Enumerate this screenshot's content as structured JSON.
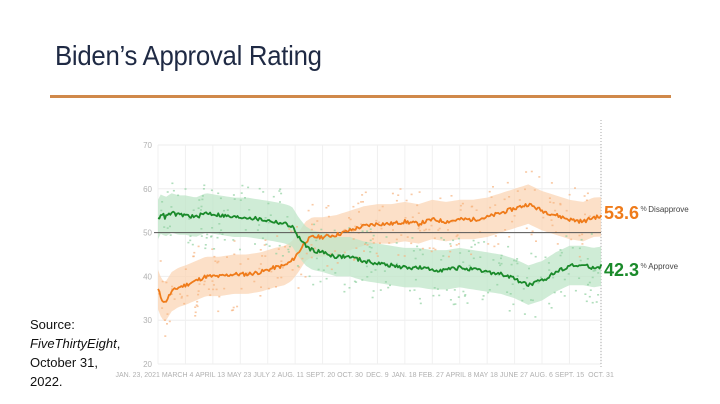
{
  "slide": {
    "title": "Biden’s Approval Rating",
    "source_prefix": "Source:",
    "source_name": "FiveThirtyEight",
    "source_date_line1": "October 31,",
    "source_date_line2": "2022."
  },
  "colors": {
    "approve": "#1a8a2a",
    "disapprove": "#ef7b1a",
    "approve_band": "#bfe6c8",
    "disapprove_band": "#fbd5b5",
    "rule": "#d0894a",
    "reference_line": "#555555"
  },
  "chart_data": {
    "type": "line",
    "title": "Biden’s Approval Rating",
    "xlabel": "",
    "ylabel": "",
    "ylim": [
      20,
      70
    ],
    "yticks": [
      20,
      30,
      40,
      50,
      60,
      70
    ],
    "reference_line": 50,
    "grid": true,
    "x_tick_labels": [
      "JAN. 23, 2021",
      "MARCH 4",
      "APRIL 13",
      "MAY 23",
      "JULY 2",
      "AUG. 11",
      "SEPT. 20",
      "OCT. 30",
      "DEC. 9",
      "JAN. 18",
      "FEB. 27",
      "APRIL 8",
      "MAY 18",
      "JUNE 27",
      "AUG. 6",
      "SEPT. 15",
      "OCT. 31"
    ],
    "x_tick_days": [
      0,
      40,
      80,
      120,
      160,
      200,
      240,
      280,
      320,
      360,
      400,
      440,
      480,
      520,
      560,
      600,
      646
    ],
    "x_unit": "days since Jan. 23, 2021",
    "xlim": [
      0,
      646
    ],
    "series": [
      {
        "name": "Disapprove",
        "end_value": "53.6",
        "end_label": "Disapprove",
        "x": [
          0,
          5,
          10,
          20,
          30,
          40,
          55,
          70,
          90,
          110,
          130,
          150,
          170,
          185,
          195,
          205,
          215,
          225,
          240,
          260,
          280,
          300,
          320,
          340,
          360,
          380,
          400,
          420,
          440,
          460,
          480,
          500,
          520,
          540,
          560,
          580,
          600,
          620,
          635,
          646
        ],
        "values": [
          37,
          35,
          34,
          36.5,
          37.5,
          38,
          39,
          40,
          40,
          40.5,
          40.5,
          41,
          42,
          42.5,
          43.5,
          45.5,
          48,
          49,
          49,
          49.5,
          50.5,
          51.5,
          52,
          52,
          52.5,
          52,
          53,
          52.5,
          53,
          53,
          53.5,
          54.5,
          55.5,
          56.5,
          55,
          54,
          53,
          52.5,
          53.5,
          53.6
        ]
      },
      {
        "name": "Approve",
        "end_value": "42.3",
        "end_label": "Approve",
        "x": [
          0,
          5,
          10,
          20,
          30,
          40,
          55,
          70,
          90,
          110,
          130,
          150,
          170,
          185,
          195,
          205,
          215,
          225,
          240,
          260,
          280,
          300,
          320,
          340,
          360,
          380,
          400,
          420,
          440,
          460,
          480,
          500,
          520,
          540,
          560,
          580,
          600,
          620,
          635,
          646
        ],
        "values": [
          53,
          54.5,
          53.5,
          54.5,
          54,
          54,
          53.5,
          54.5,
          54,
          53.5,
          53.5,
          53,
          52.5,
          52,
          51.5,
          49,
          47,
          46,
          45.5,
          44.5,
          44.5,
          43.5,
          43,
          42.5,
          42,
          42,
          41.5,
          41.5,
          42,
          41.5,
          41,
          40.5,
          39.5,
          38,
          39,
          41,
          42.5,
          42.5,
          42,
          42.3
        ]
      }
    ]
  }
}
